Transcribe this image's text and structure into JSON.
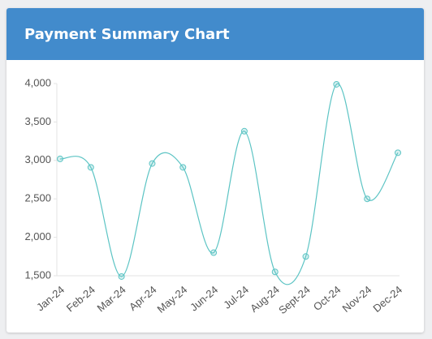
{
  "chart_data": {
    "type": "line",
    "title": "Payment Summary Chart",
    "categories": [
      "Jan-24",
      "Feb-24",
      "Mar-24",
      "Apr-24",
      "May-24",
      "Jun-24",
      "Jul-24",
      "Aug-24",
      "Sept-24",
      "Oct-24",
      "Nov-24",
      "Dec-24"
    ],
    "series": [
      {
        "color": "#5cc4c4",
        "values": [
          3020,
          2910,
          1490,
          2960,
          2910,
          1800,
          3380,
          1550,
          1750,
          3990,
          2500,
          3100
        ]
      }
    ],
    "ylim": [
      1500,
      4000
    ],
    "yticks": [
      {
        "value": 1500,
        "label": "1,500"
      },
      {
        "value": 2000,
        "label": "2,000"
      },
      {
        "value": 2500,
        "label": "2,500"
      },
      {
        "value": 3000,
        "label": "3,000"
      },
      {
        "value": 3500,
        "label": "3,500"
      },
      {
        "value": 4000,
        "label": "4,000"
      }
    ],
    "grid": false
  }
}
